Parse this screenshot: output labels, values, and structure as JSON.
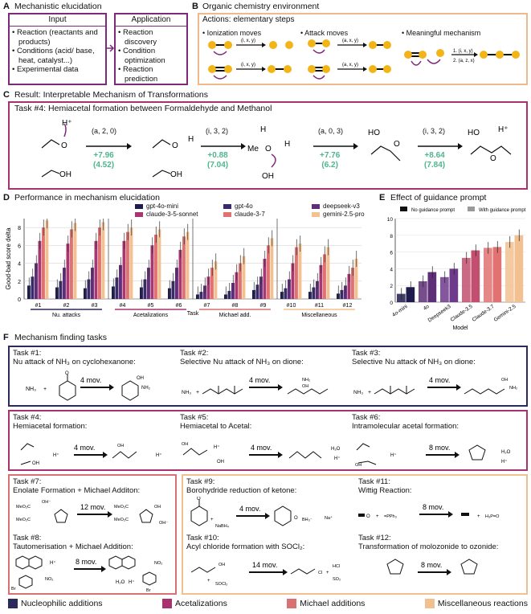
{
  "panelA": {
    "letter": "A",
    "title": "Mechanistic elucidation",
    "input_head": "Input",
    "input_items": [
      "• Reaction (reactants and products)",
      "• Conditions (acid/ base, heat, catalyst...)",
      "• Experimental  data"
    ],
    "app_head": "Application",
    "app_items": [
      "• Reaction discovery",
      "• Condition optimization",
      "• Reaction prediction"
    ]
  },
  "panelB": {
    "letter": "B",
    "title": "Organic chemistry environment",
    "actions": "Actions: elementary steps",
    "ionization": "• Ionization moves",
    "attack": "• Attack moves",
    "meaningful": "• Meaningful mechanism",
    "label_ixy": "(i, x, y)",
    "label_axy": "(a, x, y)",
    "step1": "1. (i, x, y)",
    "step2": "2. (a, z, x)"
  },
  "panelC": {
    "letter": "C",
    "title": "Result: Interpretable Mechanism of Transformations",
    "task": "Task #4: Hemiacetal formation between Formaldehyde and Methanol",
    "steps": [
      {
        "move": "(a, 2, 0)",
        "delta": "+7.96",
        "paren": "(4.52)"
      },
      {
        "move": "(i, 3, 2)",
        "delta": "+0.88",
        "paren": "(7.04)"
      },
      {
        "move": "(a, 0, 3)",
        "delta": "+7.76",
        "paren": "(6.2)"
      },
      {
        "move": "(i, 3, 2)",
        "delta": "+8.64",
        "paren": "(7.84)"
      }
    ],
    "atoms": {
      "hplus": "H⁺",
      "o": "O",
      "h": "H",
      "me": "Me",
      "oh": "OH",
      "ho": "HO"
    }
  },
  "panelD": {
    "letter": "D",
    "title": "Performance in mechanism elucidation",
    "ylabel": "Good-bad score delta",
    "xlabel": "Task",
    "legend": [
      {
        "name": "gpt-4o-mini",
        "color": "#1f1c4d"
      },
      {
        "name": "gpt-4o",
        "color": "#3a2a6b"
      },
      {
        "name": "deepseek-v3",
        "color": "#5e2f78"
      },
      {
        "name": "claude-3-5-sonnet",
        "color": "#a83670"
      },
      {
        "name": "claude-3-7",
        "color": "#e07272"
      },
      {
        "name": "gemini-2.5-pro",
        "color": "#f3c191"
      }
    ],
    "groups": [
      {
        "name": "Nu. attacks",
        "color": "#2b2a5a"
      },
      {
        "name": "Acetalizations",
        "color": "#a8326e"
      },
      {
        "name": "Michael add.",
        "color": "#d97072"
      },
      {
        "name": "Miscellaneous",
        "color": "#f2c08e"
      }
    ]
  },
  "chart_data": [
    {
      "type": "bar",
      "ylabel": "Good-bad score delta",
      "xlabel": "Task",
      "ylim": [
        0,
        9
      ],
      "categories": [
        "#1",
        "#2",
        "#3",
        "#4",
        "#5",
        "#6",
        "#7",
        "#8",
        "#9",
        "#10",
        "#11",
        "#12"
      ],
      "series": [
        {
          "name": "gpt-4o-mini",
          "values": [
            1.5,
            1.3,
            1.2,
            1.4,
            1.3,
            1.2,
            0.5,
            0.5,
            1.0,
            0.8,
            0.8,
            0.6
          ]
        },
        {
          "name": "gpt-4o",
          "values": [
            2.5,
            2.0,
            2.2,
            2.4,
            2.2,
            2.0,
            0.8,
            0.9,
            1.6,
            1.2,
            1.3,
            1.0
          ]
        },
        {
          "name": "deepseek-v3",
          "values": [
            4.0,
            3.5,
            3.5,
            3.8,
            3.5,
            3.5,
            1.5,
            1.8,
            2.5,
            2.2,
            2.0,
            1.5
          ]
        },
        {
          "name": "claude-3-5-sonnet",
          "values": [
            6.5,
            6.2,
            6.5,
            6.5,
            6.0,
            5.5,
            2.5,
            3.0,
            4.5,
            4.0,
            3.8,
            2.8
          ]
        },
        {
          "name": "claude-3-7",
          "values": [
            8.0,
            7.8,
            8.0,
            7.5,
            7.2,
            7.0,
            3.5,
            4.0,
            6.0,
            5.8,
            5.0,
            3.5
          ]
        },
        {
          "name": "gemini-2.5-pro",
          "values": [
            8.8,
            8.5,
            8.6,
            8.0,
            7.8,
            7.5,
            4.2,
            4.8,
            6.8,
            6.2,
            5.8,
            4.5
          ]
        }
      ]
    },
    {
      "type": "bar",
      "title": "Effect of guidance prompt",
      "xlabel": "Model",
      "ylim": [
        0,
        10
      ],
      "categories": [
        "4o-mini",
        "4o",
        "Deepseek3",
        "Claude-3.5",
        "Claude-3.7",
        "Gemini-2.5"
      ],
      "series": [
        {
          "name": "No guidance prompt",
          "values": [
            1.0,
            2.5,
            3.0,
            5.3,
            6.5,
            7.2
          ]
        },
        {
          "name": "With guidance prompt",
          "values": [
            1.8,
            3.6,
            4.0,
            6.2,
            6.6,
            8.0
          ]
        }
      ]
    }
  ],
  "panelE": {
    "letter": "E",
    "title": "Effect of guidance prompt",
    "xlabel": "Model",
    "legend_no": "No guidance prompt",
    "legend_with": "With guidance prompt",
    "colors": [
      "#1f1c4d",
      "#5e2f78",
      "#6e3a8c",
      "#c24f6f",
      "#e07272",
      "#f3c191"
    ]
  },
  "panelF": {
    "letter": "F",
    "title": "Mechanism finding tasks",
    "tasks": [
      {
        "id": "Task #1:",
        "desc": "Nu attack of NH₃ on cyclohexanone:",
        "moves": "4 mov."
      },
      {
        "id": "Task #2:",
        "desc": "Selective Nu attack of NH₃ on dione:",
        "moves": "4 mov."
      },
      {
        "id": "Task #3:",
        "desc": "Selective Nu attack of NH₃ on dione:",
        "moves": "4 mov."
      },
      {
        "id": "Task #4:",
        "desc": "Hemiacetal formation:",
        "moves": "4 mov."
      },
      {
        "id": "Task #5:",
        "desc": "Hemiacetal to Acetal:",
        "moves": "4 mov."
      },
      {
        "id": "Task #6:",
        "desc": "Intramolecular acetal formation:",
        "moves": "8 mov."
      },
      {
        "id": "Task #7:",
        "desc": "Enolate Formation + Michael Additon:",
        "moves": "12 mov."
      },
      {
        "id": "Task #8:",
        "desc": "Tautomerisation + Michael Addition:",
        "moves": "8 mov."
      },
      {
        "id": "Task #9:",
        "desc": "Borohydride reduction of ketone:",
        "moves": "4 mov."
      },
      {
        "id": "Task #10:",
        "desc": "Acyl chloride formation with SOCl₂:",
        "moves": "14 mov."
      },
      {
        "id": "Task #11:",
        "desc": "Wittig Reaction:",
        "moves": "8 mov."
      },
      {
        "id": "Task #12:",
        "desc": "Transformation of molozonide to ozonide:",
        "moves": "8 mov."
      }
    ],
    "legend": [
      {
        "name": "Nucleophilic additions",
        "color": "#2b2a5a"
      },
      {
        "name": "Acetalizations",
        "color": "#a8326e"
      },
      {
        "name": "Michael additions",
        "color": "#d97072"
      },
      {
        "name": "Miscellaneous reactions",
        "color": "#f2c08e"
      }
    ],
    "chem": {
      "nh3": "NH₃",
      "plus": "+",
      "hplus": "H⁺",
      "h2o": "H₂O",
      "nabh4": "NaBH₄",
      "na": "Na⁺",
      "socl2": "SOCl₂",
      "hcl": "HCl",
      "so2": "SO₂",
      "ph3": "=PPh₃",
      "h3po": "H₃P=O",
      "oh": "OH",
      "nh2": "NH₂",
      "meo2c": "MeO₂C",
      "ohm": "OH⁻",
      "no2": "NO₂",
      "br": "Br",
      "bh3": "BH₃⁻",
      "cl": "Cl",
      "o": "O"
    }
  }
}
